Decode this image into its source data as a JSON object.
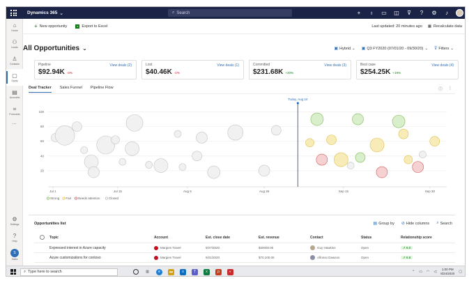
{
  "app": {
    "title": "Dynamics 365",
    "search_placeholder": "Search"
  },
  "topbar_icons": [
    "plus-icon",
    "lightbulb-icon",
    "chat-icon",
    "assistant-icon",
    "filter-icon",
    "help-icon",
    "settings-icon",
    "bell-icon"
  ],
  "leftnav": {
    "items": [
      {
        "label": "Home",
        "icon": "home-icon"
      },
      {
        "label": "Leads",
        "icon": "leads-icon"
      },
      {
        "label": "Contacts",
        "icon": "contacts-icon"
      },
      {
        "label": "Oppty",
        "icon": "opportunity-icon"
      },
      {
        "label": "Accounts",
        "icon": "accounts-icon"
      },
      {
        "label": "Forecasts",
        "icon": "forecasts-icon"
      }
    ],
    "more": "...",
    "bottom": [
      {
        "label": "Settings",
        "icon": "gear-icon"
      },
      {
        "label": "Help",
        "icon": "help-icon"
      }
    ],
    "user_initials": "S",
    "user_label": "Sales"
  },
  "commands": {
    "new_opportunity": "New opportunity",
    "export_excel": "Export to Excel",
    "last_updated": "Last updated: 20 minutes ago",
    "recalculate": "Recalculate data"
  },
  "view": {
    "title": "All Opportunities",
    "filters": {
      "hybrid": "Hybrid",
      "period": "Q3 FY2020 (07/01/20 - 09/30/20)",
      "filters": "Filters"
    }
  },
  "kpis": [
    {
      "label": "Pipeline",
      "value": "$92.94K",
      "change": "-3%",
      "trend": "neg",
      "link": "View deals (2)"
    },
    {
      "label": "Lost",
      "value": "$40.46K",
      "change": "-1%",
      "trend": "neg",
      "link": "View deals (1)"
    },
    {
      "label": "Committed",
      "value": "$231.68K",
      "change": "+20%",
      "trend": "pos",
      "link": "View deals (3)"
    },
    {
      "label": "Best case",
      "value": "$254.25K",
      "change": "+19%",
      "trend": "pos",
      "link": "View deals (4)"
    }
  ],
  "tabs": [
    {
      "label": "Deal Tracker",
      "active": true
    },
    {
      "label": "Sales Funnel",
      "active": false
    },
    {
      "label": "Pipeline Flow",
      "active": false
    }
  ],
  "chart_data": {
    "type": "scatter",
    "today_label": "Today, Aug 24",
    "today_index": 5.2,
    "y_ticks": [
      "100",
      "80",
      "60",
      "40",
      "20"
    ],
    "ylim": [
      0,
      110
    ],
    "x_ticks": [
      "Jul 1",
      "Jul 15",
      "Aug 5",
      "Aug 26",
      "Sep 15",
      "Sep 30"
    ],
    "legend": [
      {
        "name": "Strong",
        "color": "#7dbb5a"
      },
      {
        "name": "Fair",
        "color": "#e3c64a"
      },
      {
        "name": "Needs attention",
        "color": "#d05a5a"
      },
      {
        "name": "Closed",
        "color": "#bdbdbd"
      }
    ],
    "points": [
      {
        "x": 0.15,
        "y": 65,
        "r": 6,
        "s": "closed"
      },
      {
        "x": 0.35,
        "y": 68,
        "r": 14,
        "s": "closed"
      },
      {
        "x": 0.6,
        "y": 80,
        "r": 7,
        "s": "closed"
      },
      {
        "x": 0.75,
        "y": 48,
        "r": 5,
        "s": "closed"
      },
      {
        "x": 0.9,
        "y": 32,
        "r": 10,
        "s": "closed"
      },
      {
        "x": 0.95,
        "y": 18,
        "r": 8,
        "s": "closed"
      },
      {
        "x": 1.2,
        "y": 55,
        "r": 13,
        "s": "closed"
      },
      {
        "x": 1.4,
        "y": 62,
        "r": 6,
        "s": "closed"
      },
      {
        "x": 1.55,
        "y": 32,
        "r": 5,
        "s": "closed"
      },
      {
        "x": 1.75,
        "y": 50,
        "r": 10,
        "s": "closed"
      },
      {
        "x": 1.8,
        "y": 85,
        "r": 12,
        "s": "closed"
      },
      {
        "x": 2.1,
        "y": 28,
        "r": 5,
        "s": "closed"
      },
      {
        "x": 2.35,
        "y": 27,
        "r": 10,
        "s": "closed"
      },
      {
        "x": 2.7,
        "y": 70,
        "r": 5,
        "s": "closed"
      },
      {
        "x": 2.8,
        "y": 25,
        "r": 5,
        "s": "closed"
      },
      {
        "x": 3.1,
        "y": 40,
        "r": 7,
        "s": "closed"
      },
      {
        "x": 3.2,
        "y": 65,
        "r": 8,
        "s": "closed"
      },
      {
        "x": 3.45,
        "y": 18,
        "r": 9,
        "s": "closed"
      },
      {
        "x": 3.9,
        "y": 72,
        "r": 11,
        "s": "closed"
      },
      {
        "x": 4.5,
        "y": 20,
        "r": 8,
        "s": "closed"
      },
      {
        "x": 4.75,
        "y": 75,
        "r": 7,
        "s": "closed"
      },
      {
        "x": 5.45,
        "y": 58,
        "r": 6,
        "s": "fair"
      },
      {
        "x": 5.6,
        "y": 90,
        "r": 9,
        "s": "strong"
      },
      {
        "x": 5.7,
        "y": 35,
        "r": 8,
        "s": "attention"
      },
      {
        "x": 5.9,
        "y": 62,
        "r": 7,
        "s": "fair"
      },
      {
        "x": 6.1,
        "y": 35,
        "r": 10,
        "s": "fair"
      },
      {
        "x": 6.3,
        "y": 27,
        "r": 5,
        "s": "closed"
      },
      {
        "x": 6.45,
        "y": 90,
        "r": 8,
        "s": "strong"
      },
      {
        "x": 6.5,
        "y": 38,
        "r": 7,
        "s": "strong"
      },
      {
        "x": 6.85,
        "y": 55,
        "r": 10,
        "s": "fair"
      },
      {
        "x": 6.95,
        "y": 18,
        "r": 8,
        "s": "attention"
      },
      {
        "x": 7.3,
        "y": 87,
        "r": 9,
        "s": "strong"
      },
      {
        "x": 7.4,
        "y": 70,
        "r": 7,
        "s": "fair"
      },
      {
        "x": 7.7,
        "y": 25,
        "r": 8,
        "s": "attention"
      },
      {
        "x": 8.05,
        "y": 60,
        "r": 7,
        "s": "fair"
      },
      {
        "x": 7.8,
        "y": 42,
        "r": 5,
        "s": "closed"
      },
      {
        "x": 7.5,
        "y": 35,
        "r": 6,
        "s": "fair"
      }
    ]
  },
  "list": {
    "title": "Opportunities list",
    "group_by": "Group by",
    "hide_columns": "Hide columns",
    "search": "Search",
    "columns": {
      "topic": "Topic",
      "account": "Account",
      "close_date": "Est. close date",
      "revenue": "Est. revenue",
      "contact": "Contact",
      "status": "Status",
      "score": "Relationship score"
    },
    "rows": [
      {
        "topic": "Expressed interest in Azure capacity",
        "account": "Margies Travel",
        "close_date": "9/27/2020",
        "revenue": "$30000.00",
        "contact": "Guy Hawkins",
        "status": "Open",
        "score": "6.0"
      },
      {
        "topic": "Azure customizations for contoso",
        "account": "Margies Travel",
        "close_date": "9/21/2020",
        "revenue": "$70,100.00",
        "contact": "Alfonso Dawson",
        "status": "Open",
        "score": "6.8"
      }
    ]
  },
  "taskbar": {
    "search_placeholder": "Type here to search",
    "time": "1:00 PM",
    "date": "8/24/2020"
  }
}
